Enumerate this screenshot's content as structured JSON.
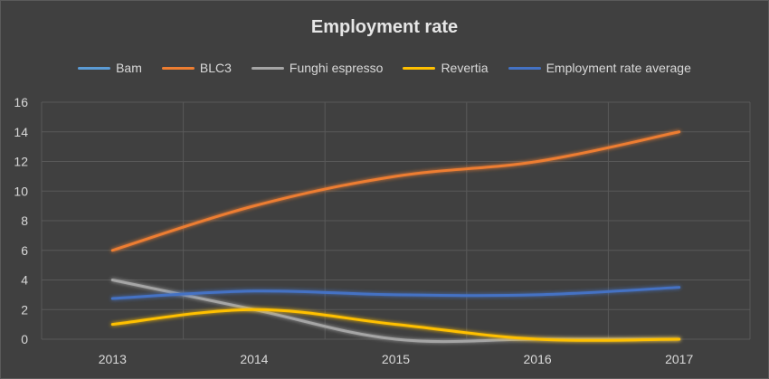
{
  "chart_data": {
    "type": "line",
    "title": "Employment rate",
    "xlabel": "",
    "ylabel": "",
    "categories": [
      "2013",
      "2014",
      "2015",
      "2016",
      "2017"
    ],
    "ylim": [
      0,
      16
    ],
    "yticks": [
      0,
      2,
      4,
      6,
      8,
      10,
      12,
      14,
      16
    ],
    "grid": true,
    "legend_position": "top",
    "series": [
      {
        "name": "Bam",
        "color": "#5b9bd5",
        "values": [
          0,
          0,
          0,
          0,
          0
        ]
      },
      {
        "name": "BLC3",
        "color": "#ed7d31",
        "values": [
          6,
          9,
          11,
          12,
          14
        ]
      },
      {
        "name": "Funghi espresso",
        "color": "#a5a5a5",
        "values": [
          4,
          2,
          0,
          0,
          0
        ]
      },
      {
        "name": "Revertia",
        "color": "#ffc000",
        "values": [
          1,
          2,
          1,
          0,
          0
        ]
      },
      {
        "name": "Employment rate average",
        "color": "#4472c4",
        "values": [
          2.75,
          3.25,
          3,
          3,
          3.5
        ]
      }
    ]
  }
}
